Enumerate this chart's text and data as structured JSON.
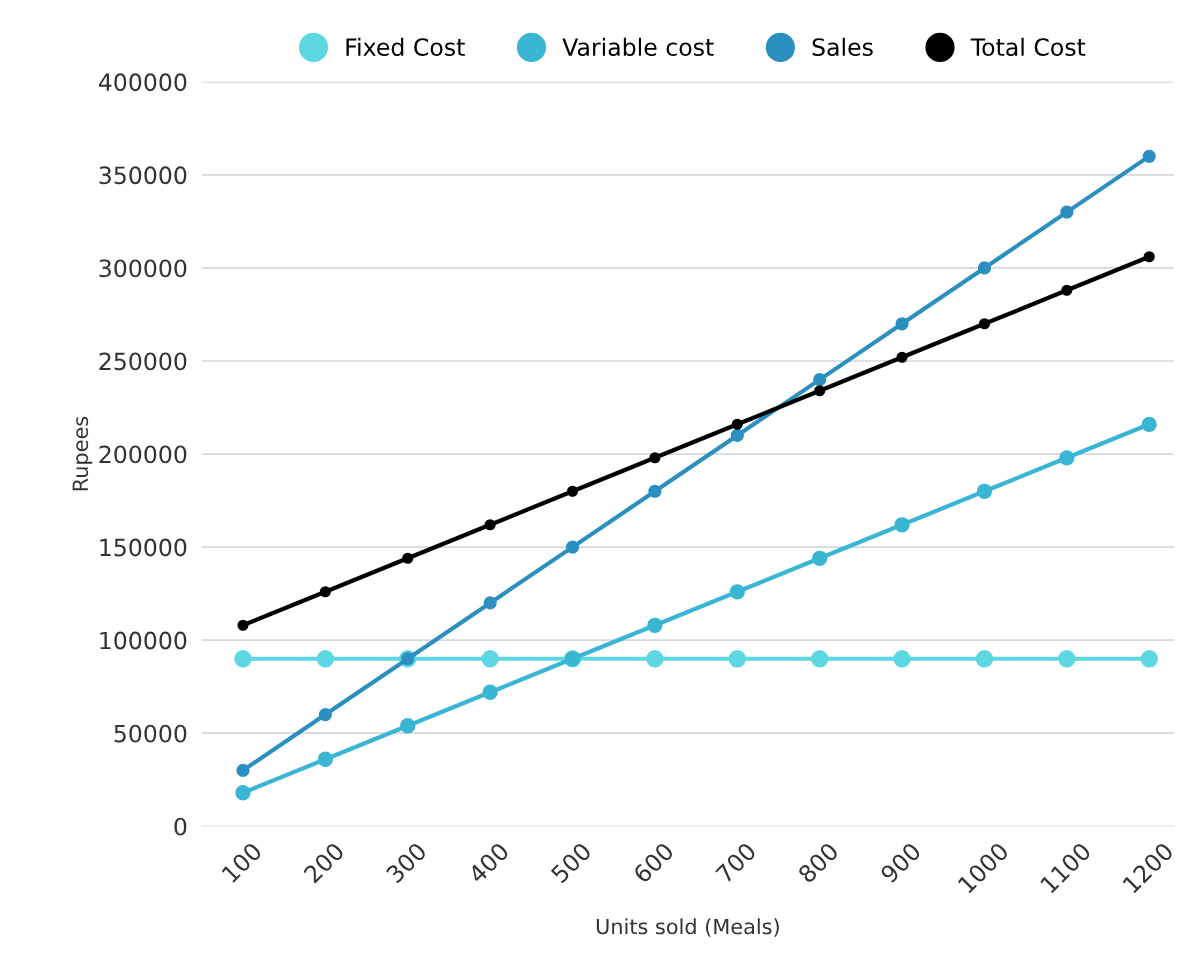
{
  "chart_data": {
    "type": "line",
    "xlabel": "Units sold (Meals)",
    "ylabel": "Rupees",
    "categories": [
      "100",
      "200",
      "300",
      "400",
      "500",
      "600",
      "700",
      "800",
      "900",
      "1000",
      "1100",
      "1200"
    ],
    "series": [
      {
        "name": "Fixed Cost",
        "color": "#5dd8e2",
        "values": [
          90000,
          90000,
          90000,
          90000,
          90000,
          90000,
          90000,
          90000,
          90000,
          90000,
          90000,
          90000
        ]
      },
      {
        "name": "Variable cost",
        "color": "#3ab6d4",
        "values": [
          18000,
          36000,
          54000,
          72000,
          90000,
          108000,
          126000,
          144000,
          162000,
          180000,
          198000,
          216000
        ]
      },
      {
        "name": "Sales",
        "color": "#2b8fc0",
        "values": [
          30000,
          60000,
          90000,
          120000,
          150000,
          180000,
          210000,
          240000,
          270000,
          300000,
          330000,
          360000
        ]
      },
      {
        "name": "Total Cost",
        "color": "#000000",
        "values": [
          108000,
          126000,
          144000,
          162000,
          180000,
          198000,
          216000,
          234000,
          252000,
          270000,
          288000,
          306000
        ]
      }
    ],
    "ylim": [
      0,
      400000
    ],
    "yticks": [
      0,
      50000,
      100000,
      150000,
      200000,
      250000,
      300000,
      350000,
      400000
    ],
    "grid": "y",
    "legend": "top",
    "marker": "circle",
    "line_style": "solid"
  }
}
